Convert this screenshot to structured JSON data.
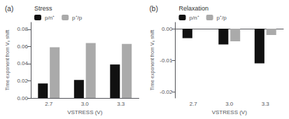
{
  "chart_data": [
    {
      "type": "bar",
      "title": "(a)",
      "legend_title": "Stress",
      "xlabel": "VSTRESS (V)",
      "ylabel": "Time exponent from V₀ shift",
      "categories": [
        "2.7",
        "3.0",
        "3.3"
      ],
      "series": [
        {
          "name": "p/n⁺",
          "color": "#111111",
          "values": [
            0.017,
            0.021,
            0.039
          ]
        },
        {
          "name": "p⁺/p",
          "color": "#aaaaaa",
          "values": [
            0.059,
            0.064,
            0.063
          ]
        }
      ],
      "ylim": [
        0.0,
        0.088
      ],
      "yticks": [
        {
          "value": 0,
          "label": "0.00"
        },
        0.02,
        0.04,
        0.06,
        0.08
      ],
      "grid": false,
      "legend": "upper left"
    },
    {
      "type": "bar",
      "title": "(b)",
      "legend_title": "Relaxation",
      "xlabel": "VSTRESS (V)",
      "ylabel": "Time exponent from V₀ shift",
      "categories": [
        "2.7",
        "3.0",
        "3.3"
      ],
      "series": [
        {
          "name": "p/n⁺",
          "color": "#111111",
          "values": [
            -0.003,
            -0.005,
            -0.011
          ]
        },
        {
          "name": "p⁺/p",
          "color": "#aaaaaa",
          "values": [
            0.0,
            -0.004,
            -0.002
          ]
        }
      ],
      "ylim": [
        -0.022,
        0.002
      ],
      "yticks": [
        -0.02,
        -0.01,
        {
          "value": 0,
          "label": "0.00"
        }
      ],
      "grid": false,
      "legend": "upper left"
    }
  ]
}
